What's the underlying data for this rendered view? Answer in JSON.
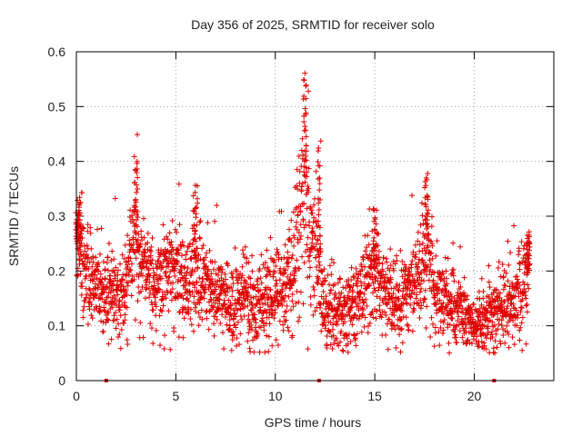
{
  "chart_data": {
    "type": "scatter",
    "title": "Day 356 of 2025, SRMTID for receiver solo",
    "xlabel": "GPS time / hours",
    "ylabel": "SRMTID / TECUs",
    "xlim": [
      0,
      24
    ],
    "ylim": [
      0,
      0.6
    ],
    "xticks": [
      0,
      5,
      10,
      15,
      20
    ],
    "yticks": [
      0,
      0.1,
      0.2,
      0.3,
      0.4,
      0.5,
      0.6
    ],
    "xtick_labels": [
      "0",
      "5",
      "10",
      "15",
      "20"
    ],
    "ytick_labels": [
      "0",
      "0.1",
      "0.2",
      "0.3",
      "0.4",
      "0.5",
      "0.6"
    ],
    "grid": true,
    "marker": "+",
    "color": "#e00000",
    "series": [
      {
        "name": "SRMTID",
        "profile_x": [
          0,
          0.1,
          0.3,
          0.6,
          1.0,
          1.5,
          2.0,
          2.4,
          2.8,
          3.0,
          3.2,
          3.5,
          4.0,
          4.5,
          5.0,
          5.5,
          6.0,
          6.5,
          7.0,
          7.5,
          8.0,
          8.5,
          9.0,
          9.5,
          10.0,
          10.5,
          11.0,
          11.3,
          11.5,
          11.7,
          12.0,
          12.3,
          12.5,
          13.0,
          13.5,
          14.0,
          14.5,
          14.8,
          15.0,
          15.5,
          16.0,
          16.5,
          17.0,
          17.5,
          17.7,
          18.0,
          18.5,
          19.0,
          19.5,
          20.0,
          20.5,
          21.0,
          21.5,
          22.0,
          22.5,
          22.8
        ],
        "profile_mean": [
          0.24,
          0.25,
          0.22,
          0.19,
          0.17,
          0.16,
          0.15,
          0.17,
          0.24,
          0.26,
          0.22,
          0.19,
          0.18,
          0.22,
          0.2,
          0.17,
          0.2,
          0.18,
          0.16,
          0.15,
          0.14,
          0.15,
          0.14,
          0.14,
          0.16,
          0.17,
          0.22,
          0.3,
          0.36,
          0.27,
          0.25,
          0.18,
          0.13,
          0.12,
          0.13,
          0.14,
          0.18,
          0.22,
          0.2,
          0.16,
          0.15,
          0.16,
          0.17,
          0.22,
          0.26,
          0.16,
          0.15,
          0.13,
          0.12,
          0.1,
          0.11,
          0.12,
          0.13,
          0.15,
          0.18,
          0.2
        ],
        "profile_spread": [
          0.05,
          0.05,
          0.05,
          0.05,
          0.045,
          0.045,
          0.045,
          0.05,
          0.06,
          0.07,
          0.06,
          0.05,
          0.05,
          0.05,
          0.05,
          0.045,
          0.06,
          0.05,
          0.045,
          0.045,
          0.045,
          0.045,
          0.045,
          0.045,
          0.05,
          0.05,
          0.06,
          0.08,
          0.1,
          0.08,
          0.07,
          0.05,
          0.04,
          0.04,
          0.04,
          0.045,
          0.05,
          0.06,
          0.05,
          0.045,
          0.045,
          0.045,
          0.05,
          0.06,
          0.07,
          0.045,
          0.04,
          0.04,
          0.035,
          0.03,
          0.03,
          0.035,
          0.04,
          0.045,
          0.05,
          0.05
        ],
        "peaks": [
          [
            0.05,
            0.31
          ],
          [
            0.2,
            0.34
          ],
          [
            3.0,
            0.405
          ],
          [
            6.0,
            0.355
          ],
          [
            11.5,
            0.55
          ],
          [
            12.2,
            0.435
          ],
          [
            15.0,
            0.32
          ],
          [
            17.6,
            0.38
          ],
          [
            22.7,
            0.265
          ]
        ],
        "zero_points": [
          [
            1.5,
            0.0
          ],
          [
            12.2,
            0.0
          ],
          [
            21.0,
            0.0
          ]
        ]
      }
    ]
  }
}
